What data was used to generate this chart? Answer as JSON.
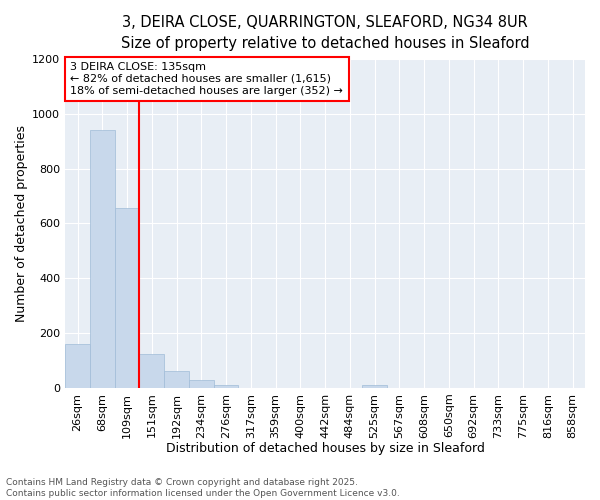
{
  "title_line1": "3, DEIRA CLOSE, QUARRINGTON, SLEAFORD, NG34 8UR",
  "title_line2": "Size of property relative to detached houses in Sleaford",
  "xlabel": "Distribution of detached houses by size in Sleaford",
  "ylabel": "Number of detached properties",
  "footer_line1": "Contains HM Land Registry data © Crown copyright and database right 2025.",
  "footer_line2": "Contains public sector information licensed under the Open Government Licence v3.0.",
  "bin_labels": [
    "26sqm",
    "68sqm",
    "109sqm",
    "151sqm",
    "192sqm",
    "234sqm",
    "276sqm",
    "317sqm",
    "359sqm",
    "400sqm",
    "442sqm",
    "484sqm",
    "525sqm",
    "567sqm",
    "608sqm",
    "650sqm",
    "692sqm",
    "733sqm",
    "775sqm",
    "816sqm",
    "858sqm"
  ],
  "bar_values": [
    160,
    940,
    655,
    125,
    60,
    28,
    12,
    0,
    0,
    0,
    0,
    0,
    10,
    0,
    0,
    0,
    0,
    0,
    0,
    0,
    0
  ],
  "bar_color": "#c8d8eb",
  "bar_edge_color": "#a0bcd8",
  "vline_color": "red",
  "vline_position": 2.5,
  "annotation_text": "3 DEIRA CLOSE: 135sqm\n← 82% of detached houses are smaller (1,615)\n18% of semi-detached houses are larger (352) →",
  "annotation_box_facecolor": "white",
  "annotation_box_edgecolor": "red",
  "ylim": [
    0,
    1200
  ],
  "yticks": [
    0,
    200,
    400,
    600,
    800,
    1000,
    1200
  ],
  "plot_bg_color": "#e8eef5",
  "grid_color": "white",
  "title_fontsize": 10.5,
  "subtitle_fontsize": 9.5,
  "xlabel_fontsize": 9,
  "ylabel_fontsize": 9,
  "tick_fontsize": 8,
  "annot_fontsize": 8,
  "footer_fontsize": 6.5
}
